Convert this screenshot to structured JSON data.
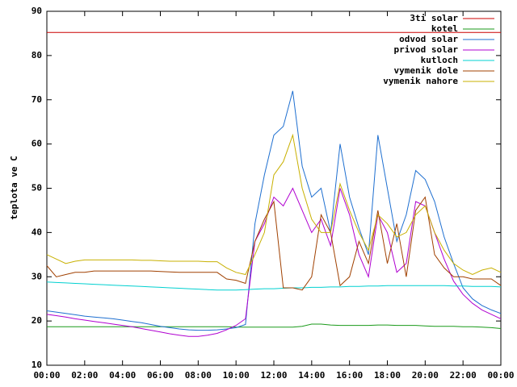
{
  "chart_data": {
    "type": "line",
    "ylabel": "teplota ve C",
    "x": [
      0,
      0.5,
      1,
      1.5,
      2,
      2.5,
      3,
      3.5,
      4,
      4.5,
      5,
      5.5,
      6,
      6.5,
      7,
      7.5,
      8,
      8.5,
      9,
      9.5,
      10,
      10.5,
      11,
      11.5,
      12,
      12.5,
      13,
      13.5,
      14,
      14.5,
      15,
      15.5,
      16,
      16.5,
      17,
      17.5,
      18,
      18.5,
      19,
      19.5,
      20,
      20.5,
      21,
      21.5,
      22,
      22.5,
      23,
      23.5,
      24
    ],
    "xlim": [
      0,
      24
    ],
    "xticks": [
      {
        "value": 0,
        "label": "00:00"
      },
      {
        "value": 2,
        "label": "02:00"
      },
      {
        "value": 4,
        "label": "04:00"
      },
      {
        "value": 6,
        "label": "06:00"
      },
      {
        "value": 8,
        "label": "08:00"
      },
      {
        "value": 10,
        "label": "10:00"
      },
      {
        "value": 12,
        "label": "12:00"
      },
      {
        "value": 14,
        "label": "14:00"
      },
      {
        "value": 16,
        "label": "16:00"
      },
      {
        "value": 18,
        "label": "18:00"
      },
      {
        "value": 20,
        "label": "20:00"
      },
      {
        "value": 22,
        "label": "22:00"
      },
      {
        "value": 24,
        "label": "00:00"
      }
    ],
    "ylim": [
      10,
      90
    ],
    "yticks": [
      10,
      20,
      30,
      40,
      50,
      60,
      70,
      80,
      90
    ],
    "grid": false,
    "legend": "top-right",
    "series": [
      {
        "name": "3ti solar",
        "color": "#cc0000",
        "values": [
          85.2,
          85.2,
          85.2,
          85.2,
          85.2,
          85.2,
          85.2,
          85.2,
          85.2,
          85.2,
          85.2,
          85.2,
          85.2,
          85.2,
          85.2,
          85.2,
          85.2,
          85.2,
          85.2,
          85.2,
          85.2,
          85.2,
          85.2,
          85.2,
          85.2,
          85.2,
          85.2,
          85.2,
          85.2,
          85.2,
          85.2,
          85.2,
          85.2,
          85.2,
          85.2,
          85.2,
          85.2,
          85.2,
          85.2,
          85.2,
          85.2,
          85.2,
          85.2,
          85.2,
          85.2,
          85.2,
          85.2,
          85.2,
          85.2
        ]
      },
      {
        "name": "kotel",
        "color": "#1a9a1a",
        "values": [
          18.7,
          18.7,
          18.7,
          18.7,
          18.7,
          18.7,
          18.7,
          18.7,
          18.7,
          18.7,
          18.7,
          18.7,
          18.7,
          18.7,
          18.7,
          18.7,
          18.7,
          18.7,
          18.7,
          18.7,
          18.6,
          18.6,
          18.6,
          18.6,
          18.6,
          18.6,
          18.6,
          18.8,
          19.3,
          19.3,
          19.1,
          19,
          19,
          19,
          19,
          19.1,
          19.1,
          19,
          19,
          19,
          18.9,
          18.8,
          18.8,
          18.8,
          18.7,
          18.7,
          18.6,
          18.5,
          18.3
        ]
      },
      {
        "name": "odvod solar",
        "color": "#1e6fd0",
        "values": [
          22.3,
          22,
          21.7,
          21.4,
          21.1,
          20.9,
          20.7,
          20.5,
          20.2,
          19.9,
          19.6,
          19.2,
          18.8,
          18.5,
          18.2,
          18,
          17.9,
          17.9,
          18,
          18.2,
          18.5,
          19.2,
          42,
          53,
          62,
          64,
          72,
          55,
          48,
          50,
          40,
          60,
          48,
          41,
          35,
          62,
          50,
          38,
          44,
          54,
          52,
          47,
          39,
          33,
          27.5,
          25,
          23.5,
          22.5,
          21.7
        ]
      },
      {
        "name": "privod solar",
        "color": "#b000d0",
        "values": [
          21.5,
          21.2,
          20.9,
          20.5,
          20.2,
          19.9,
          19.6,
          19.3,
          19,
          18.7,
          18.3,
          17.9,
          17.5,
          17.1,
          16.8,
          16.5,
          16.5,
          16.8,
          17.2,
          18,
          19,
          20.5,
          38,
          42,
          48,
          46,
          50,
          45,
          40,
          43,
          37,
          50,
          44,
          35,
          30,
          44,
          40,
          31,
          33,
          47,
          46,
          40,
          34,
          29,
          26,
          24,
          22.5,
          21.5,
          20.5
        ]
      },
      {
        "name": "kutloch",
        "color": "#00d0d0",
        "values": [
          28.8,
          28.7,
          28.6,
          28.5,
          28.4,
          28.3,
          28.2,
          28.1,
          28,
          27.9,
          27.8,
          27.7,
          27.6,
          27.5,
          27.4,
          27.3,
          27.2,
          27.1,
          27,
          27,
          27,
          27.1,
          27.2,
          27.3,
          27.3,
          27.4,
          27.5,
          27.5,
          27.6,
          27.6,
          27.7,
          27.7,
          27.8,
          27.8,
          27.9,
          27.9,
          28,
          28,
          28,
          28,
          28,
          28,
          28,
          27.9,
          27.9,
          27.8,
          27.8,
          27.8,
          27.7
        ]
      },
      {
        "name": "vymenik dole",
        "color": "#a04000",
        "values": [
          32.5,
          30,
          30.5,
          31,
          31,
          31.3,
          31.3,
          31.3,
          31.3,
          31.3,
          31.3,
          31.3,
          31.2,
          31.1,
          31,
          31,
          31,
          31,
          31,
          29.5,
          29.2,
          28.5,
          38,
          43,
          47,
          27.5,
          27.5,
          27,
          30,
          44,
          40,
          28,
          30,
          38,
          33,
          45,
          33,
          42,
          30,
          45,
          48,
          35,
          32,
          30,
          30,
          29.5,
          29.5,
          29.5,
          28
        ]
      },
      {
        "name": "vymenik nahore",
        "color": "#c8b000",
        "values": [
          35,
          34,
          33,
          33.5,
          33.8,
          33.8,
          33.8,
          33.8,
          33.8,
          33.8,
          33.7,
          33.7,
          33.6,
          33.5,
          33.5,
          33.5,
          33.5,
          33.4,
          33.4,
          32,
          31,
          30.5,
          35,
          40,
          53,
          56,
          62,
          50,
          43,
          40,
          40,
          51,
          45,
          40,
          36,
          44,
          42,
          39,
          40,
          44,
          46,
          40,
          36,
          33,
          31.5,
          30.5,
          31.5,
          32,
          31
        ]
      }
    ]
  }
}
